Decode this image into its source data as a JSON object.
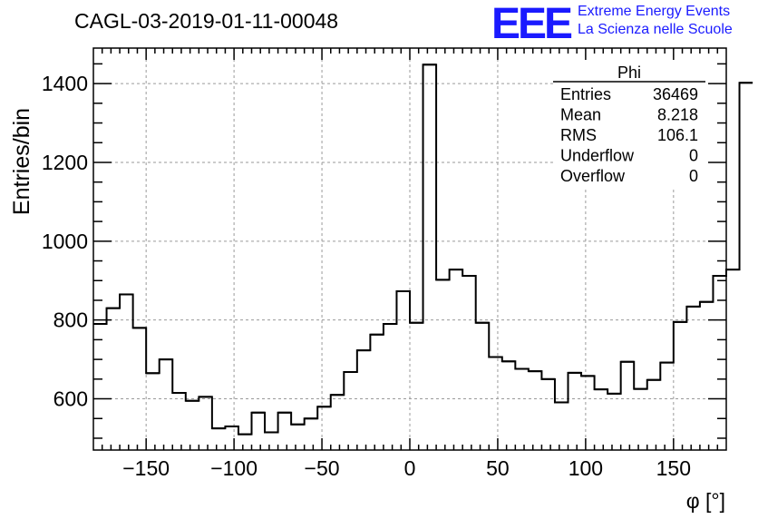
{
  "header": {
    "title": "CAGL-03-2019-01-11-00048",
    "logo_text": "EEE",
    "logo_line1": "Extreme Energy Events",
    "logo_line2": "La Scienza nelle Scuole"
  },
  "colors": {
    "logo_blue": "#1a1aff",
    "grid": "#9a9a9a",
    "line": "#000000"
  },
  "stats": {
    "title": "Phi",
    "rows": [
      {
        "label": "Entries",
        "value": "36469"
      },
      {
        "label": "Mean",
        "value": "8.218"
      },
      {
        "label": "RMS",
        "value": "106.1"
      },
      {
        "label": "Underflow",
        "value": "0"
      },
      {
        "label": "Overflow",
        "value": "0"
      }
    ]
  },
  "chart_data": {
    "type": "histogram",
    "title": "CAGL-03-2019-01-11-00048",
    "xlabel": "φ [°]",
    "ylabel": "Entries/bin",
    "xlim": [
      -180,
      180
    ],
    "ylim": [
      470,
      1490
    ],
    "grid": true,
    "bin_width": 7.5,
    "x_ticks": [
      -150,
      -100,
      -50,
      0,
      50,
      100,
      150
    ],
    "x_tick_labels": [
      "−150",
      "−100",
      "−50",
      "0",
      "50",
      "100",
      "150"
    ],
    "y_ticks": [
      600,
      800,
      1000,
      1200,
      1400
    ],
    "y_tick_labels": [
      "600",
      "800",
      "1000",
      "1200",
      "1400"
    ],
    "values": [
      790,
      830,
      865,
      780,
      665,
      700,
      615,
      595,
      605,
      525,
      530,
      510,
      565,
      515,
      565,
      535,
      550,
      580,
      610,
      668,
      723,
      763,
      790,
      873,
      793,
      1448,
      902,
      928,
      912,
      793,
      706,
      695,
      676,
      670,
      650,
      591,
      666,
      658,
      624,
      613,
      694,
      625,
      648,
      692,
      795,
      834,
      846,
      912,
      928,
      1402
    ]
  }
}
